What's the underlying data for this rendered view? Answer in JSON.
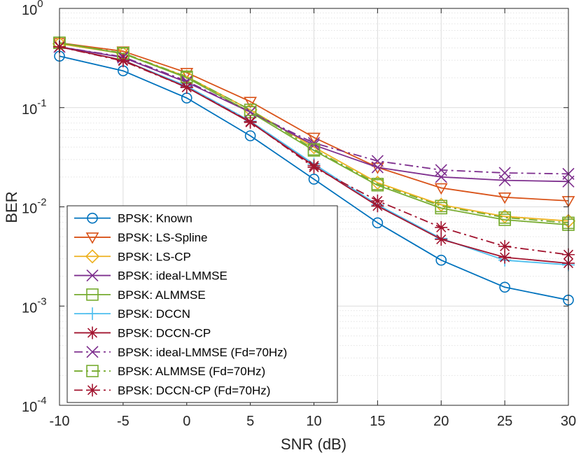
{
  "chart_data": {
    "type": "line",
    "title": "",
    "xlabel": "SNR (dB)",
    "ylabel": "BER",
    "yscale": "log",
    "xlim": [
      -10,
      30
    ],
    "ylim": [
      0.0001,
      1
    ],
    "grid": true,
    "legend_position": "bottom-left",
    "x": [
      -10,
      -5,
      0,
      5,
      10,
      15,
      20,
      25,
      30
    ],
    "x_ticks": [
      "-10",
      "-5",
      "0",
      "5",
      "10",
      "15",
      "20",
      "25",
      "30"
    ],
    "y_ticks": [
      {
        "base": "10",
        "exp": "0"
      },
      {
        "base": "10",
        "exp": "-1"
      },
      {
        "base": "10",
        "exp": "-2"
      },
      {
        "base": "10",
        "exp": "-3"
      },
      {
        "base": "10",
        "exp": "-4"
      }
    ],
    "series": [
      {
        "name": "BPSK: Known",
        "color": "#0072BD",
        "dash": "solid",
        "marker": "circle",
        "values": [
          0.33,
          0.235,
          0.125,
          0.052,
          0.019,
          0.0069,
          0.0029,
          0.00155,
          0.00115
        ]
      },
      {
        "name": "BPSK: LS-Spline",
        "color": "#D95319",
        "dash": "solid",
        "marker": "triangle-down",
        "values": [
          0.45,
          0.37,
          0.225,
          0.115,
          0.05,
          0.025,
          0.0155,
          0.0125,
          0.0115
        ]
      },
      {
        "name": "BPSK: LS-CP",
        "color": "#EDB120",
        "dash": "solid",
        "marker": "diamond",
        "values": [
          0.44,
          0.35,
          0.205,
          0.095,
          0.04,
          0.0175,
          0.0105,
          0.008,
          0.0072
        ]
      },
      {
        "name": "BPSK: ideal-LMMSE",
        "color": "#7E2F8E",
        "dash": "solid",
        "marker": "x",
        "values": [
          0.41,
          0.32,
          0.18,
          0.09,
          0.042,
          0.025,
          0.02,
          0.0185,
          0.018
        ]
      },
      {
        "name": "BPSK: ALMMSE",
        "color": "#77AC30",
        "dash": "solid",
        "marker": "square",
        "values": [
          0.45,
          0.35,
          0.2,
          0.09,
          0.037,
          0.0165,
          0.0097,
          0.0074,
          0.0066
        ]
      },
      {
        "name": "BPSK: DCCN",
        "color": "#4DBEEE",
        "dash": "solid",
        "marker": "plus",
        "values": [
          0.41,
          0.3,
          0.165,
          0.073,
          0.027,
          0.0105,
          0.0048,
          0.0029,
          0.0026
        ]
      },
      {
        "name": "BPSK: DCCN-CP",
        "color": "#A2142F",
        "dash": "solid",
        "marker": "asterisk",
        "values": [
          0.41,
          0.3,
          0.16,
          0.071,
          0.026,
          0.0102,
          0.0047,
          0.0031,
          0.0027
        ]
      },
      {
        "name": "BPSK: ideal-LMMSE (Fd=70Hz)",
        "color": "#7E2F8E",
        "dash": "dashdot",
        "marker": "x",
        "values": [
          0.41,
          0.325,
          0.185,
          0.09,
          0.044,
          0.029,
          0.0235,
          0.022,
          0.0215
        ]
      },
      {
        "name": "BPSK: ALMMSE (Fd=70Hz)",
        "color": "#77AC30",
        "dash": "dashdot",
        "marker": "square",
        "values": [
          0.45,
          0.355,
          0.205,
          0.095,
          0.038,
          0.017,
          0.0102,
          0.0078,
          0.0069
        ]
      },
      {
        "name": "BPSK: DCCN-CP (Fd=70Hz)",
        "color": "#A2142F",
        "dash": "dashdot",
        "marker": "asterisk",
        "values": [
          0.41,
          0.295,
          0.16,
          0.072,
          0.025,
          0.0115,
          0.0062,
          0.004,
          0.0033
        ]
      }
    ]
  }
}
